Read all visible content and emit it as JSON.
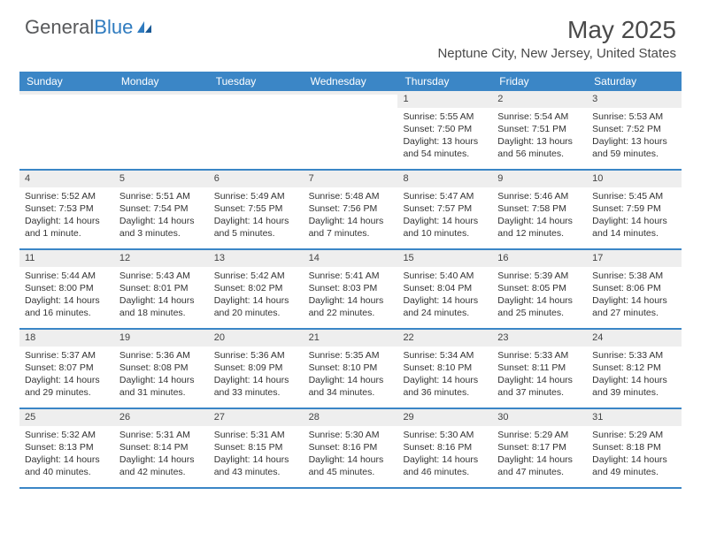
{
  "brand": {
    "word1": "General",
    "word2": "Blue"
  },
  "title": {
    "month": "May 2025",
    "location": "Neptune City, New Jersey, United States"
  },
  "colors": {
    "header_bg": "#3b86c6",
    "header_text": "#ffffff",
    "daynum_bg": "#eeeeee",
    "border": "#3b86c6",
    "brand_gray": "#58595b",
    "brand_blue": "#2f7bbf"
  },
  "day_names": [
    "Sunday",
    "Monday",
    "Tuesday",
    "Wednesday",
    "Thursday",
    "Friday",
    "Saturday"
  ],
  "weeks": [
    [
      {
        "n": "",
        "sr": "",
        "ss": "",
        "dl": ""
      },
      {
        "n": "",
        "sr": "",
        "ss": "",
        "dl": ""
      },
      {
        "n": "",
        "sr": "",
        "ss": "",
        "dl": ""
      },
      {
        "n": "",
        "sr": "",
        "ss": "",
        "dl": ""
      },
      {
        "n": "1",
        "sr": "Sunrise: 5:55 AM",
        "ss": "Sunset: 7:50 PM",
        "dl": "Daylight: 13 hours and 54 minutes."
      },
      {
        "n": "2",
        "sr": "Sunrise: 5:54 AM",
        "ss": "Sunset: 7:51 PM",
        "dl": "Daylight: 13 hours and 56 minutes."
      },
      {
        "n": "3",
        "sr": "Sunrise: 5:53 AM",
        "ss": "Sunset: 7:52 PM",
        "dl": "Daylight: 13 hours and 59 minutes."
      }
    ],
    [
      {
        "n": "4",
        "sr": "Sunrise: 5:52 AM",
        "ss": "Sunset: 7:53 PM",
        "dl": "Daylight: 14 hours and 1 minute."
      },
      {
        "n": "5",
        "sr": "Sunrise: 5:51 AM",
        "ss": "Sunset: 7:54 PM",
        "dl": "Daylight: 14 hours and 3 minutes."
      },
      {
        "n": "6",
        "sr": "Sunrise: 5:49 AM",
        "ss": "Sunset: 7:55 PM",
        "dl": "Daylight: 14 hours and 5 minutes."
      },
      {
        "n": "7",
        "sr": "Sunrise: 5:48 AM",
        "ss": "Sunset: 7:56 PM",
        "dl": "Daylight: 14 hours and 7 minutes."
      },
      {
        "n": "8",
        "sr": "Sunrise: 5:47 AM",
        "ss": "Sunset: 7:57 PM",
        "dl": "Daylight: 14 hours and 10 minutes."
      },
      {
        "n": "9",
        "sr": "Sunrise: 5:46 AM",
        "ss": "Sunset: 7:58 PM",
        "dl": "Daylight: 14 hours and 12 minutes."
      },
      {
        "n": "10",
        "sr": "Sunrise: 5:45 AM",
        "ss": "Sunset: 7:59 PM",
        "dl": "Daylight: 14 hours and 14 minutes."
      }
    ],
    [
      {
        "n": "11",
        "sr": "Sunrise: 5:44 AM",
        "ss": "Sunset: 8:00 PM",
        "dl": "Daylight: 14 hours and 16 minutes."
      },
      {
        "n": "12",
        "sr": "Sunrise: 5:43 AM",
        "ss": "Sunset: 8:01 PM",
        "dl": "Daylight: 14 hours and 18 minutes."
      },
      {
        "n": "13",
        "sr": "Sunrise: 5:42 AM",
        "ss": "Sunset: 8:02 PM",
        "dl": "Daylight: 14 hours and 20 minutes."
      },
      {
        "n": "14",
        "sr": "Sunrise: 5:41 AM",
        "ss": "Sunset: 8:03 PM",
        "dl": "Daylight: 14 hours and 22 minutes."
      },
      {
        "n": "15",
        "sr": "Sunrise: 5:40 AM",
        "ss": "Sunset: 8:04 PM",
        "dl": "Daylight: 14 hours and 24 minutes."
      },
      {
        "n": "16",
        "sr": "Sunrise: 5:39 AM",
        "ss": "Sunset: 8:05 PM",
        "dl": "Daylight: 14 hours and 25 minutes."
      },
      {
        "n": "17",
        "sr": "Sunrise: 5:38 AM",
        "ss": "Sunset: 8:06 PM",
        "dl": "Daylight: 14 hours and 27 minutes."
      }
    ],
    [
      {
        "n": "18",
        "sr": "Sunrise: 5:37 AM",
        "ss": "Sunset: 8:07 PM",
        "dl": "Daylight: 14 hours and 29 minutes."
      },
      {
        "n": "19",
        "sr": "Sunrise: 5:36 AM",
        "ss": "Sunset: 8:08 PM",
        "dl": "Daylight: 14 hours and 31 minutes."
      },
      {
        "n": "20",
        "sr": "Sunrise: 5:36 AM",
        "ss": "Sunset: 8:09 PM",
        "dl": "Daylight: 14 hours and 33 minutes."
      },
      {
        "n": "21",
        "sr": "Sunrise: 5:35 AM",
        "ss": "Sunset: 8:10 PM",
        "dl": "Daylight: 14 hours and 34 minutes."
      },
      {
        "n": "22",
        "sr": "Sunrise: 5:34 AM",
        "ss": "Sunset: 8:10 PM",
        "dl": "Daylight: 14 hours and 36 minutes."
      },
      {
        "n": "23",
        "sr": "Sunrise: 5:33 AM",
        "ss": "Sunset: 8:11 PM",
        "dl": "Daylight: 14 hours and 37 minutes."
      },
      {
        "n": "24",
        "sr": "Sunrise: 5:33 AM",
        "ss": "Sunset: 8:12 PM",
        "dl": "Daylight: 14 hours and 39 minutes."
      }
    ],
    [
      {
        "n": "25",
        "sr": "Sunrise: 5:32 AM",
        "ss": "Sunset: 8:13 PM",
        "dl": "Daylight: 14 hours and 40 minutes."
      },
      {
        "n": "26",
        "sr": "Sunrise: 5:31 AM",
        "ss": "Sunset: 8:14 PM",
        "dl": "Daylight: 14 hours and 42 minutes."
      },
      {
        "n": "27",
        "sr": "Sunrise: 5:31 AM",
        "ss": "Sunset: 8:15 PM",
        "dl": "Daylight: 14 hours and 43 minutes."
      },
      {
        "n": "28",
        "sr": "Sunrise: 5:30 AM",
        "ss": "Sunset: 8:16 PM",
        "dl": "Daylight: 14 hours and 45 minutes."
      },
      {
        "n": "29",
        "sr": "Sunrise: 5:30 AM",
        "ss": "Sunset: 8:16 PM",
        "dl": "Daylight: 14 hours and 46 minutes."
      },
      {
        "n": "30",
        "sr": "Sunrise: 5:29 AM",
        "ss": "Sunset: 8:17 PM",
        "dl": "Daylight: 14 hours and 47 minutes."
      },
      {
        "n": "31",
        "sr": "Sunrise: 5:29 AM",
        "ss": "Sunset: 8:18 PM",
        "dl": "Daylight: 14 hours and 49 minutes."
      }
    ]
  ]
}
